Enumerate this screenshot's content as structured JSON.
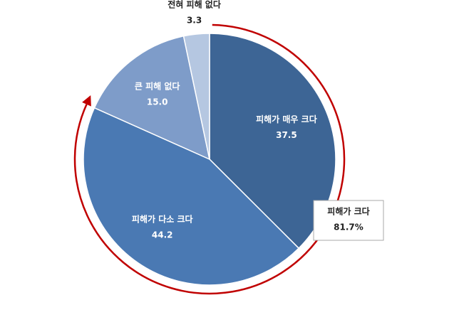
{
  "chart_data": {
    "type": "pie",
    "categories": [
      "피해가 매우 크다",
      "피해가 다소 크다",
      "큰 피해 없다",
      "전혀 피해 없다"
    ],
    "values": [
      37.5,
      44.2,
      15.0,
      3.3
    ],
    "value_labels": [
      "37.5",
      "44.2",
      "15.0",
      "3.3"
    ],
    "colors": [
      "#3d6595",
      "#4a79b3",
      "#7e9cc9",
      "#b5c7e1"
    ],
    "annotation": {
      "text": "피해가 크다",
      "value": 81.7,
      "value_label": "81.7%",
      "color": "#c00000"
    }
  }
}
